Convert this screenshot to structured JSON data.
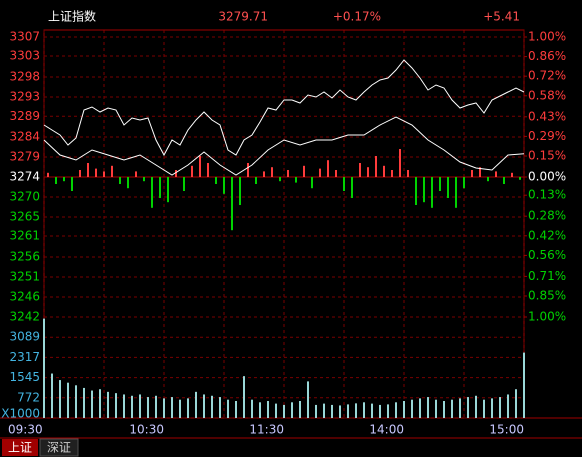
{
  "chart_data": {
    "type": "intraday",
    "title": "上证指数",
    "quote": {
      "price": "3279.71",
      "change_percent": "+0.17%",
      "change": "+5.41"
    },
    "grid": true,
    "up_color": "#ff3c3c",
    "down_color": "#00d200",
    "xlim": [
      0,
      240
    ],
    "xticks": [
      {
        "value": 0,
        "label": "09:30"
      },
      {
        "value": 60,
        "label": "10:30"
      },
      {
        "value": 120,
        "label": "11:30"
      },
      {
        "value": 180,
        "label": "14:00"
      },
      {
        "value": 240,
        "label": "15:00"
      }
    ],
    "ylim": [
      3241.55,
      3307.04
    ],
    "yticks": [
      {
        "value": 3307.04,
        "label": "3307"
      },
      {
        "value": 3302.6,
        "label": "3303"
      },
      {
        "value": 3297.68,
        "label": "3298"
      },
      {
        "value": 3293.0,
        "label": "3293"
      },
      {
        "value": 3288.5,
        "label": "3289"
      },
      {
        "value": 3283.65,
        "label": "3284"
      },
      {
        "value": 3278.97,
        "label": "3279"
      },
      {
        "value": 3274.3,
        "label": "3274"
      },
      {
        "value": 3269.62,
        "label": "3270"
      },
      {
        "value": 3264.94,
        "label": "3265"
      },
      {
        "value": 3260.5,
        "label": "3261"
      },
      {
        "value": 3255.59,
        "label": "3256"
      },
      {
        "value": 3250.91,
        "label": "3251"
      },
      {
        "value": 3246.23,
        "label": "3246"
      },
      {
        "value": 3241.55,
        "label": "3242"
      }
    ],
    "y2lim": [
      -1,
      1
    ],
    "y2ticks": [
      {
        "value": 1.0,
        "label": "1.00%"
      },
      {
        "value": 0.86,
        "label": "0.86%"
      },
      {
        "value": 0.72,
        "label": "0.72%"
      },
      {
        "value": 0.58,
        "label": "0.58%"
      },
      {
        "value": 0.43,
        "label": "0.43%"
      },
      {
        "value": 0.29,
        "label": "0.29%"
      },
      {
        "value": 0.15,
        "label": "0.15%"
      },
      {
        "value": 0,
        "label": "0.00%"
      },
      {
        "value": -0.13,
        "label": "0.13%"
      },
      {
        "value": -0.28,
        "label": "0.28%"
      },
      {
        "value": -0.42,
        "label": "0.42%"
      },
      {
        "value": -0.56,
        "label": "0.56%"
      },
      {
        "value": -0.71,
        "label": "0.71%"
      },
      {
        "value": -0.85,
        "label": "0.85%"
      },
      {
        "value": -1.0,
        "label": "1.00%"
      }
    ],
    "series": [
      {
        "color": "#ffffff",
        "values": [
          3286.46,
          3285.29,
          3284.12,
          3281.78,
          3283.42,
          3289.97,
          3290.67,
          3289.5,
          3290.43,
          3289.97,
          3286.46,
          3288.1,
          3287.63,
          3288.1,
          3282.95,
          3279.44,
          3282.95,
          3281.78,
          3285.29,
          3287.63,
          3289.5,
          3287.63,
          3286.46,
          3280.61,
          3279.44,
          3282.95,
          3284.12,
          3287.16,
          3290.43,
          3289.97,
          3292.3,
          3292.3,
          3291.6,
          3293.47,
          3293.01,
          3294.17,
          3292.77,
          3294.64,
          3293.01,
          3292.3,
          3294.17,
          3295.81,
          3296.98,
          3297.45,
          3299.32,
          3301.66,
          3299.79,
          3297.45,
          3294.64,
          3295.81,
          3295.11,
          3292.3,
          3290.43,
          3291.13,
          3291.6,
          3289.26,
          3292.3,
          3293.24,
          3294.17,
          3295.11,
          3294.17
        ]
      },
      {
        "color": "#ffffff",
        "values": [
          3282.95,
          3279.44,
          3278.27,
          3280.61,
          3279.44,
          3278.27,
          3279.44,
          3277.1,
          3274.76,
          3277.1,
          3280.14,
          3277.1,
          3274.76,
          3277.1,
          3280.61,
          3282.95,
          3281.78,
          3282.95,
          3282.95,
          3284.12,
          3284.12,
          3286.46,
          3288.33,
          3286.46,
          3282.95,
          3280.61,
          3277.8,
          3276.4,
          3275.93,
          3279.44,
          3279.71
        ]
      }
    ],
    "momentum": {
      "axis": "y2",
      "values": [
        0.03,
        -0.05,
        -0.03,
        -0.1,
        0.05,
        0.1,
        0.06,
        0.04,
        0.08,
        -0.05,
        -0.08,
        0.04,
        -0.03,
        -0.22,
        -0.15,
        -0.18,
        0.05,
        -0.1,
        0.08,
        0.15,
        0.1,
        -0.05,
        -0.12,
        -0.38,
        -0.2,
        0.1,
        -0.05,
        0.04,
        0.07,
        -0.03,
        0.05,
        -0.04,
        0.08,
        -0.08,
        0.06,
        0.12,
        0.05,
        -0.1,
        -0.15,
        0.1,
        0.07,
        0.15,
        0.08,
        0.05,
        0.2,
        0.05,
        -0.2,
        -0.18,
        -0.22,
        -0.1,
        -0.15,
        -0.22,
        -0.08,
        0.05,
        0.07,
        -0.03,
        0.04,
        -0.05,
        0.03,
        -0.02
      ]
    },
    "volume": {
      "color": "#9ad8d8",
      "ylim": [
        0,
        3861
      ],
      "yticks": [
        {
          "value": 0,
          "label": "X1000"
        },
        772,
        1545,
        2317,
        3089
      ],
      "values": [
        3800,
        1700,
        1450,
        1350,
        1250,
        1150,
        1050,
        1100,
        1000,
        950,
        900,
        850,
        900,
        800,
        850,
        750,
        800,
        700,
        750,
        1000,
        900,
        850,
        800,
        700,
        650,
        1600,
        700,
        600,
        650,
        550,
        500,
        600,
        650,
        1400,
        500,
        550,
        500,
        480,
        520,
        560,
        600,
        550,
        500,
        520,
        600,
        650,
        700,
        750,
        800,
        700,
        650,
        700,
        750,
        800,
        850,
        700,
        750,
        800,
        900,
        1100,
        2500
      ]
    },
    "tabs": [
      "上证",
      "深证"
    ]
  }
}
